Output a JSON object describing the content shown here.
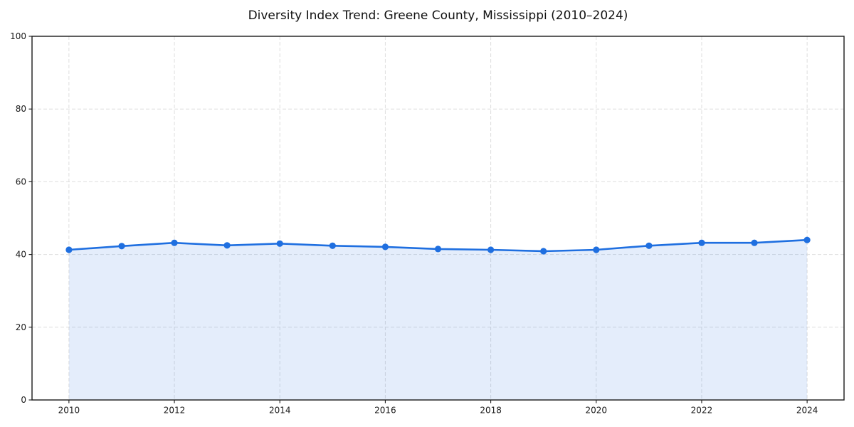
{
  "page": {
    "background": "#ffffff"
  },
  "chart_data": {
    "type": "area",
    "title": "Diversity Index Trend: Greene County, Mississippi (2010–2024)",
    "x": [
      2010,
      2011,
      2012,
      2013,
      2014,
      2015,
      2016,
      2017,
      2018,
      2019,
      2020,
      2021,
      2022,
      2023,
      2024
    ],
    "series": [
      {
        "name": "Diversity Index",
        "values": [
          41.3,
          42.3,
          43.2,
          42.5,
          43.0,
          42.4,
          42.1,
          41.5,
          41.3,
          40.9,
          41.3,
          42.4,
          43.2,
          43.2,
          44.0
        ]
      }
    ],
    "xlabel": "",
    "ylabel": "",
    "xlim": [
      2009.3,
      2024.7
    ],
    "ylim": [
      0,
      100
    ],
    "xticks": [
      2010,
      2012,
      2014,
      2016,
      2018,
      2020,
      2022,
      2024
    ],
    "yticks": [
      0,
      20,
      40,
      60,
      80,
      100
    ],
    "grid": true,
    "grid_style": "dashed",
    "legend": "none",
    "marker": "circle",
    "colors": {
      "line": "#1f6fe0",
      "fill": "#1f6fe0",
      "fill_opacity": 0.12,
      "grid": "#dedede",
      "axis": "#1a1a1a",
      "text": "#1a1a1a"
    }
  }
}
